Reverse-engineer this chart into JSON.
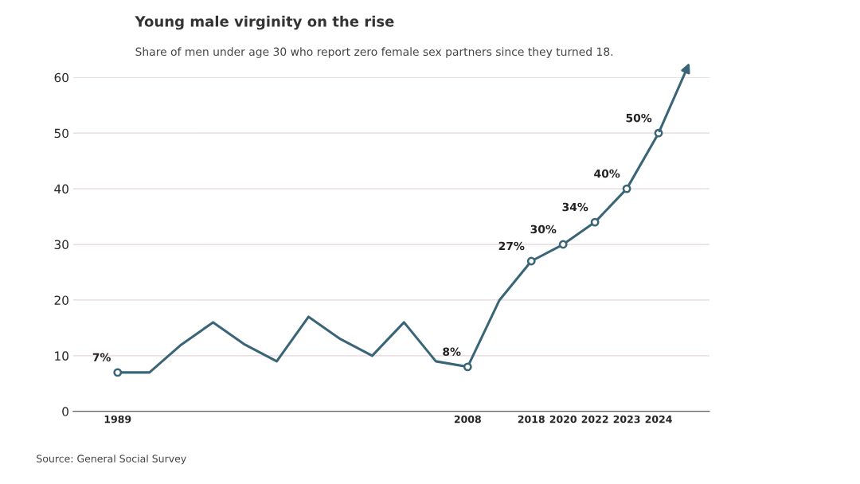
{
  "chart_data": {
    "type": "line",
    "title": "Young male virginity on the rise",
    "subtitle": "Share of men under age 30 who report zero female sex partners since they turned 18.",
    "categories": [
      "1989",
      null,
      null,
      null,
      null,
      null,
      null,
      null,
      null,
      null,
      null,
      "2008",
      null,
      "2018",
      "2020",
      "2022",
      "2023",
      "2024"
    ],
    "values": [
      7,
      7,
      12,
      16,
      12,
      9,
      17,
      13,
      10,
      16,
      9,
      8,
      20,
      27,
      30,
      34,
      40,
      50
    ],
    "value_labels": [
      "7%",
      null,
      null,
      null,
      null,
      null,
      null,
      null,
      null,
      null,
      null,
      "8%",
      null,
      "27%",
      "30%",
      "34%",
      "40%",
      "50%"
    ],
    "color": "#3a6577",
    "line_style": "solid",
    "ylim": [
      0,
      60
    ],
    "yticks": [
      0,
      10,
      20,
      30,
      40,
      50,
      60
    ],
    "grid": "y",
    "annotations": [
      "Source: General Social Survey"
    ]
  }
}
